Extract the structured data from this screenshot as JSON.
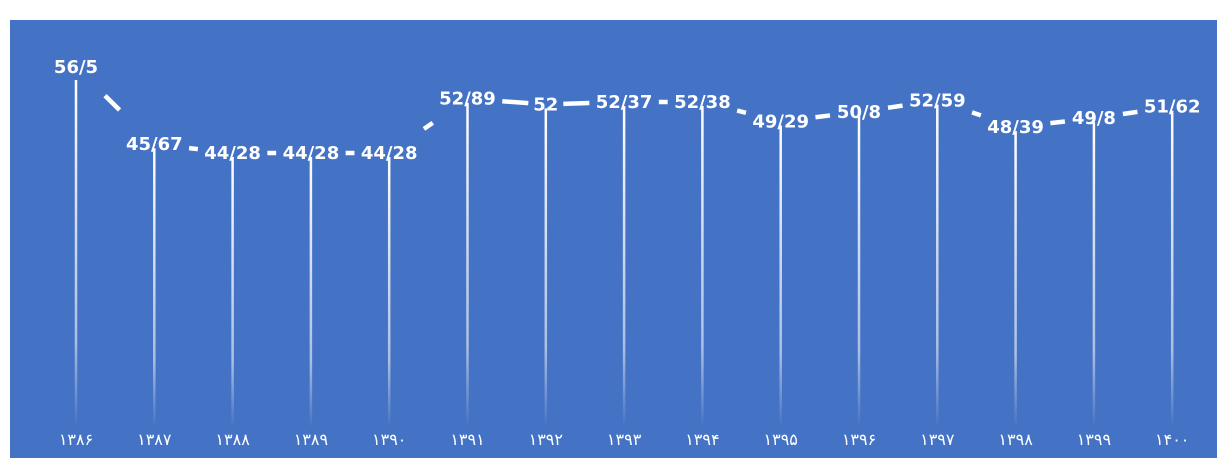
{
  "colors": {
    "background": "#4472C4",
    "line": "#FFFFFF",
    "label_text": "#FFFFFF",
    "tick_text": "#FFFFFF"
  },
  "chart_data": {
    "type": "line",
    "title": "",
    "xlabel": "",
    "ylabel": "",
    "categories": [
      "۱۳۸۶",
      "۱۳۸۷",
      "۱۳۸۸",
      "۱۳۸۹",
      "۱۳۹۰",
      "۱۳۹۱",
      "۱۳۹۲",
      "۱۳۹۳",
      "۱۳۹۴",
      "۱۳۹۵",
      "۱۳۹۶",
      "۱۳۹۷",
      "۱۳۹۸",
      "۱۳۹۹",
      "۱۴۰۰"
    ],
    "values": [
      56.5,
      45.67,
      44.28,
      44.28,
      44.28,
      52.89,
      52,
      52.37,
      52.38,
      49.29,
      50.8,
      52.59,
      48.39,
      49.8,
      51.62
    ],
    "data_labels": [
      "56/5",
      "45/67",
      "44/28",
      "44/28",
      "44/28",
      "52/89",
      "52",
      "52/37",
      "52/38",
      "49/29",
      "50/8",
      "52/59",
      "48/39",
      "49/8",
      "51/62"
    ],
    "drop_lines": true,
    "grid": false,
    "legend": "none"
  }
}
